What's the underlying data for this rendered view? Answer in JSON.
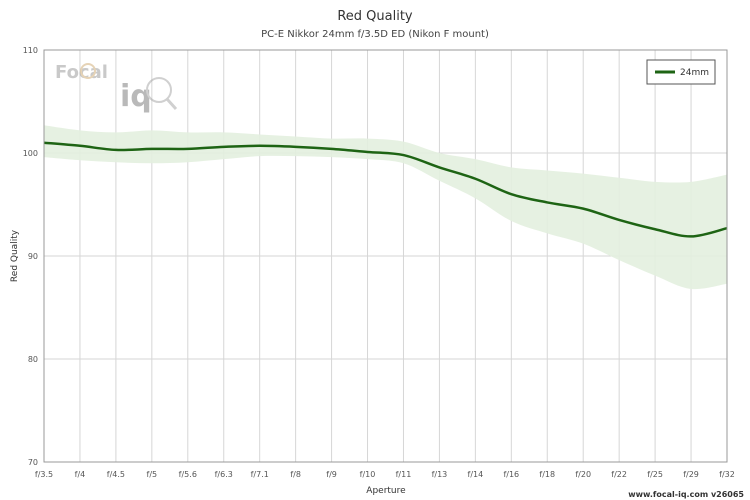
{
  "chart_data": {
    "type": "line",
    "title": "Red Quality",
    "subtitle": "PC-E Nikkor 24mm f/3.5D ED (Nikon F mount)",
    "xlabel": "Aperture",
    "ylabel": "Red Quality",
    "categories": [
      "f/3.5",
      "f/4",
      "f/4.5",
      "f/5",
      "f/5.6",
      "f/6.3",
      "f/7.1",
      "f/8",
      "f/9",
      "f/10",
      "f/11",
      "f/13",
      "f/14",
      "f/16",
      "f/18",
      "f/20",
      "f/22",
      "f/25",
      "f/29",
      "f/32"
    ],
    "ylim": [
      70,
      110
    ],
    "yticks": [
      70,
      80,
      90,
      100,
      110
    ],
    "grid": true,
    "legend_position": "top-right",
    "series": [
      {
        "name": "24mm",
        "color": "#1e6414",
        "values": [
          101.0,
          100.7,
          100.3,
          100.4,
          100.4,
          100.6,
          100.7,
          100.6,
          100.4,
          100.1,
          99.8,
          98.6,
          97.5,
          96.0,
          95.2,
          94.6,
          93.5,
          92.6,
          91.9,
          92.7
        ],
        "band_upper": [
          102.7,
          102.2,
          102.0,
          102.2,
          102.0,
          102.0,
          101.8,
          101.6,
          101.4,
          101.4,
          101.1,
          100.0,
          99.4,
          98.6,
          98.3,
          98.0,
          97.6,
          97.2,
          97.2,
          97.9
        ],
        "band_lower": [
          99.6,
          99.3,
          99.1,
          99.0,
          99.1,
          99.4,
          99.7,
          99.7,
          99.6,
          99.4,
          99.0,
          97.3,
          95.6,
          93.4,
          92.2,
          91.2,
          89.6,
          88.1,
          86.8,
          87.3
        ],
        "band_color": "#e3f0df"
      }
    ]
  },
  "watermark": {
    "logo_top": "Focal",
    "logo_bottom": "iq",
    "footer": "www.focal-iq.com v26065"
  }
}
